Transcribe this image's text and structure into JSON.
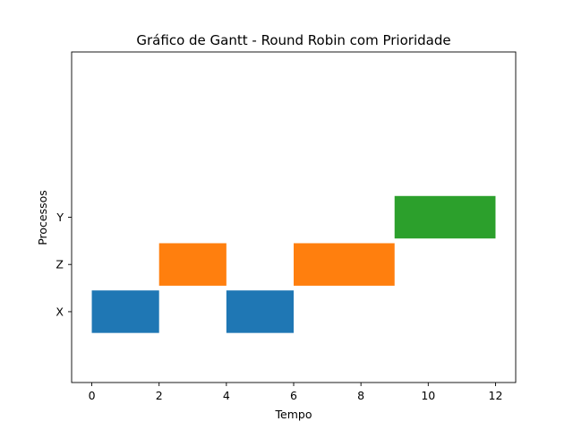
{
  "chart_data": {
    "type": "bar",
    "orientation": "horizontal-gantt",
    "title": "Gráfico de Gantt - Round Robin com Prioridade",
    "xlabel": "Tempo",
    "ylabel": "Processos",
    "xlim": [
      -0.6,
      12.6
    ],
    "xticks": [
      0,
      2,
      4,
      6,
      8,
      10,
      12
    ],
    "categories": [
      "X",
      "Z",
      "Y"
    ],
    "grid": false,
    "tasks": [
      {
        "process": "X",
        "start": 0,
        "end": 2,
        "color": "#1f77b4"
      },
      {
        "process": "Z",
        "start": 2,
        "end": 4,
        "color": "#ff7f0e"
      },
      {
        "process": "X",
        "start": 4,
        "end": 6,
        "color": "#1f77b4"
      },
      {
        "process": "Z",
        "start": 6,
        "end": 9,
        "color": "#ff7f0e"
      },
      {
        "process": "Y",
        "start": 9,
        "end": 12,
        "color": "#2ca02c"
      }
    ]
  }
}
